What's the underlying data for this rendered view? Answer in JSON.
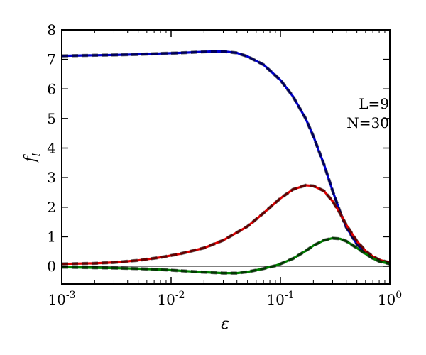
{
  "chart_data": {
    "type": "line",
    "xscale": "log",
    "xlabel": "ε",
    "ylabel": "f_l",
    "xlim": [
      0.001,
      1
    ],
    "ylim": [
      -0.6,
      8
    ],
    "x_ticks": [
      {
        "value": 0.001,
        "base": "10",
        "exp": "-3"
      },
      {
        "value": 0.01,
        "base": "10",
        "exp": "-2"
      },
      {
        "value": 0.1,
        "base": "10",
        "exp": "-1"
      },
      {
        "value": 1,
        "base": "10",
        "exp": "0"
      }
    ],
    "y_ticks": [
      0,
      1,
      2,
      3,
      4,
      5,
      6,
      7,
      8
    ],
    "annotations": [
      "L=9",
      "N=30"
    ],
    "reference_line": {
      "y": 0,
      "color": "#000000"
    },
    "series": [
      {
        "color": "#0000cc",
        "x": [
          0.001,
          0.002,
          0.003,
          0.005,
          0.008,
          0.012,
          0.018,
          0.025,
          0.03,
          0.04,
          0.05,
          0.07,
          0.1,
          0.13,
          0.17,
          0.2,
          0.25,
          0.3,
          0.35,
          0.4,
          0.5,
          0.6,
          0.7,
          0.8,
          1.0
        ],
        "y": [
          7.12,
          7.14,
          7.15,
          7.17,
          7.2,
          7.22,
          7.25,
          7.27,
          7.27,
          7.22,
          7.1,
          6.82,
          6.3,
          5.75,
          5.0,
          4.4,
          3.45,
          2.55,
          1.85,
          1.32,
          0.75,
          0.45,
          0.28,
          0.18,
          0.1
        ]
      },
      {
        "color": "#dd0000",
        "x": [
          0.001,
          0.002,
          0.003,
          0.005,
          0.008,
          0.012,
          0.02,
          0.03,
          0.05,
          0.07,
          0.1,
          0.13,
          0.17,
          0.2,
          0.25,
          0.3,
          0.35,
          0.4,
          0.5,
          0.6,
          0.7,
          0.8,
          1.0
        ],
        "y": [
          0.08,
          0.1,
          0.13,
          0.2,
          0.3,
          0.42,
          0.62,
          0.88,
          1.35,
          1.8,
          2.3,
          2.6,
          2.74,
          2.72,
          2.55,
          2.2,
          1.8,
          1.4,
          0.85,
          0.52,
          0.33,
          0.22,
          0.12
        ]
      },
      {
        "color": "#008000",
        "x": [
          0.001,
          0.002,
          0.003,
          0.005,
          0.008,
          0.012,
          0.02,
          0.03,
          0.04,
          0.05,
          0.07,
          0.09,
          0.1,
          0.13,
          0.17,
          0.2,
          0.25,
          0.3,
          0.35,
          0.4,
          0.5,
          0.6,
          0.7,
          0.8,
          1.0
        ],
        "y": [
          -0.03,
          -0.05,
          -0.06,
          -0.08,
          -0.11,
          -0.15,
          -0.2,
          -0.23,
          -0.23,
          -0.19,
          -0.08,
          0.02,
          0.08,
          0.26,
          0.52,
          0.7,
          0.88,
          0.95,
          0.93,
          0.85,
          0.62,
          0.42,
          0.27,
          0.17,
          0.08
        ]
      }
    ]
  }
}
